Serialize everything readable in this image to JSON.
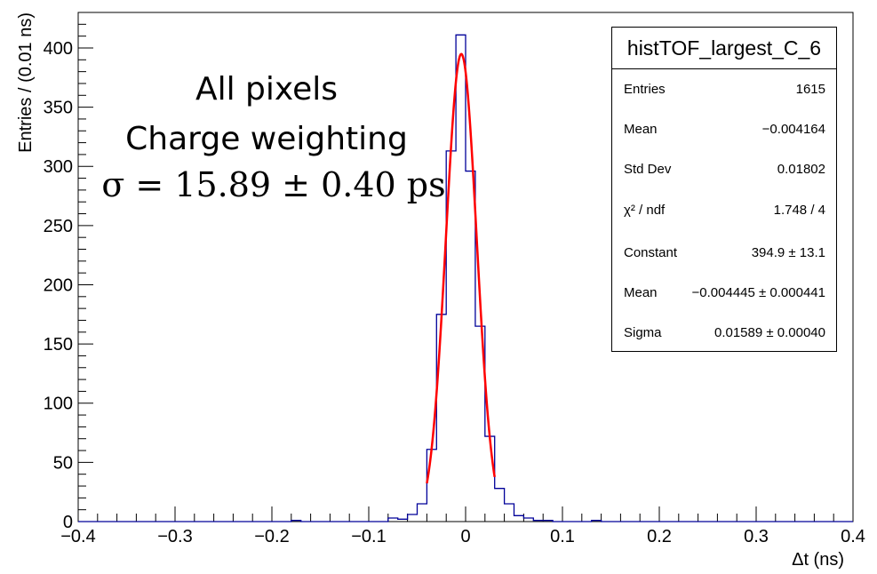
{
  "chart_data": {
    "type": "histogram",
    "title": "",
    "xlabel": "Δt (ns)",
    "ylabel": "Entries / (0.01 ns)",
    "xlim": [
      -0.4,
      0.4
    ],
    "ylim": [
      0,
      430
    ],
    "x_ticks": [
      "−0.4",
      "−0.3",
      "−0.2",
      "−0.1",
      "0",
      "0.1",
      "0.2",
      "0.3",
      "0.4"
    ],
    "y_ticks": [
      "0",
      "50",
      "100",
      "150",
      "200",
      "250",
      "300",
      "350",
      "400"
    ],
    "bin_width": 0.01,
    "bin_edges_start": -0.4,
    "counts": [
      0,
      0,
      0,
      0,
      0,
      0,
      0,
      0,
      0,
      0,
      0,
      0,
      0,
      0,
      0,
      0,
      0,
      0,
      0,
      0,
      0,
      0,
      1,
      0,
      0,
      0,
      0,
      0,
      0,
      0,
      0,
      0,
      3,
      2,
      6,
      15,
      61,
      175,
      313,
      411,
      296,
      165,
      72,
      28,
      15,
      5,
      3,
      1,
      1,
      0,
      0,
      0,
      0,
      1,
      0,
      0,
      0,
      0,
      0,
      0,
      0,
      0,
      0,
      0,
      0,
      0,
      0,
      0,
      0,
      0,
      0,
      0,
      0,
      0,
      0,
      0,
      0,
      0,
      0,
      0
    ],
    "fit": {
      "name": "gaussian",
      "color": "#ff0000",
      "constant": 394.9,
      "mean": -0.004445,
      "sigma": 0.01589,
      "range": [
        -0.04,
        0.03
      ]
    },
    "histogram_color": "#000099",
    "legend": "top-right"
  },
  "annotation": {
    "line1": "All pixels",
    "line2": "Charge weighting",
    "line3": "σ = 15.89 ± 0.40 ps"
  },
  "stats": {
    "title": "histTOF_largest_C_6",
    "rows": [
      {
        "key": "Entries",
        "value": "1615"
      },
      {
        "key": "Mean",
        "value": "−0.004164"
      },
      {
        "key": "Std Dev",
        "value": "0.01802"
      },
      {
        "key": "χ² / ndf",
        "value": "1.748 / 4"
      },
      {
        "key": "Constant",
        "value": "394.9 ± 13.1"
      },
      {
        "key": "Mean",
        "value": "−0.004445 ± 0.000441"
      },
      {
        "key": "Sigma",
        "value": "0.01589 ± 0.00040"
      }
    ]
  }
}
